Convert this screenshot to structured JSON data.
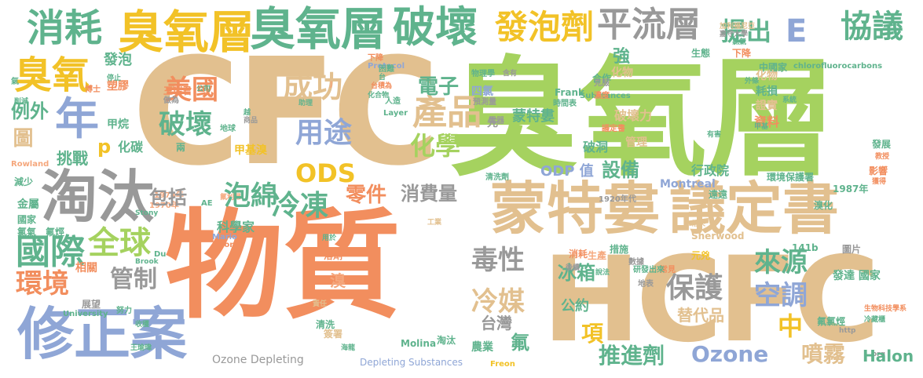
{
  "palette": {
    "tan": "#e2c08f",
    "green": "#a5d25f",
    "orange": "#f28e5e",
    "teal": "#5fb38d",
    "gray": "#999999",
    "blue": "#8fa6d6",
    "yellow": "#f2c227",
    "salmon": "#f5a77c"
  },
  "words": [
    {
      "text": "CFC",
      "color": "tan"
    },
    {
      "text": "臭氧層",
      "color": "green"
    },
    {
      "text": "物質",
      "color": "orange"
    },
    {
      "text": "HCFC",
      "color": "tan"
    },
    {
      "text": "蒙特婁",
      "color": "tan"
    },
    {
      "text": "議定書",
      "color": "tan"
    },
    {
      "text": "淘汰",
      "color": "gray"
    },
    {
      "text": "修正案",
      "color": "blue"
    },
    {
      "text": "消耗",
      "color": "teal"
    },
    {
      "text": "臭氧層",
      "color": "yellow"
    },
    {
      "text": "臭氧層",
      "color": "teal"
    },
    {
      "text": "破壞",
      "color": "teal"
    },
    {
      "text": "發泡劑",
      "color": "yellow"
    },
    {
      "text": "平流層",
      "color": "gray"
    },
    {
      "text": "提出",
      "color": "teal"
    },
    {
      "text": "E",
      "color": "blue"
    },
    {
      "text": "協議",
      "color": "teal"
    },
    {
      "text": "臭氧",
      "color": "yellow"
    },
    {
      "text": "年",
      "color": "blue"
    },
    {
      "text": "成功",
      "color": "tan"
    },
    {
      "text": "產品",
      "color": "tan"
    },
    {
      "text": "電子",
      "color": "teal"
    },
    {
      "text": "化學",
      "color": "green"
    },
    {
      "text": "美國",
      "color": "orange"
    },
    {
      "text": "破壞",
      "color": "teal"
    },
    {
      "text": "用途",
      "color": "blue"
    },
    {
      "text": "ODS",
      "color": "yellow"
    },
    {
      "text": "設備",
      "color": "teal"
    },
    {
      "text": "國際",
      "color": "teal"
    },
    {
      "text": "全球",
      "color": "green"
    },
    {
      "text": "環境",
      "color": "orange"
    },
    {
      "text": "冷凍",
      "color": "teal"
    },
    {
      "text": "泡綿",
      "color": "teal"
    },
    {
      "text": "零件",
      "color": "orange"
    },
    {
      "text": "消費量",
      "color": "gray"
    },
    {
      "text": "毒性",
      "color": "gray"
    },
    {
      "text": "冷媒",
      "color": "tan"
    },
    {
      "text": "冰箱",
      "color": "teal"
    },
    {
      "text": "管制",
      "color": "gray"
    },
    {
      "text": "保護",
      "color": "gray"
    },
    {
      "text": "來源",
      "color": "teal"
    },
    {
      "text": "空調",
      "color": "blue"
    },
    {
      "text": "替代品",
      "color": "tan"
    },
    {
      "text": "Ozone",
      "color": "blue"
    },
    {
      "text": "Halon",
      "color": "teal"
    },
    {
      "text": "推進劑",
      "color": "teal"
    },
    {
      "text": "噴霧",
      "color": "tan"
    },
    {
      "text": "中",
      "color": "yellow"
    },
    {
      "text": "項",
      "color": "yellow"
    },
    {
      "text": "包括",
      "color": "gray"
    },
    {
      "text": "例外",
      "color": "teal"
    },
    {
      "text": "挑戰",
      "color": "teal"
    },
    {
      "text": "p",
      "color": "yellow"
    },
    {
      "text": "溴",
      "color": "salmon"
    },
    {
      "text": "台灣",
      "color": "gray"
    },
    {
      "text": "氟",
      "color": "teal"
    },
    {
      "text": "公約",
      "color": "teal"
    },
    {
      "text": "發展",
      "color": "teal"
    },
    {
      "text": "Ozone Depleting",
      "color": "gray"
    },
    {
      "text": "Depleting Substances",
      "color": "blue"
    },
    {
      "text": "圖",
      "color": "tan"
    },
    {
      "text": "強",
      "color": "teal"
    },
    {
      "text": "發泡",
      "color": "teal"
    },
    {
      "text": "塑膠",
      "color": "orange"
    },
    {
      "text": "甲烷",
      "color": "teal"
    },
    {
      "text": "Protocol",
      "color": "blue"
    },
    {
      "text": "蒙特婁",
      "color": "teal"
    },
    {
      "text": "化物",
      "color": "tan"
    },
    {
      "text": "耗損",
      "color": "teal"
    },
    {
      "text": "證實",
      "color": "tan"
    },
    {
      "text": "資料",
      "color": "orange"
    },
    {
      "text": "四氯",
      "color": "blue"
    },
    {
      "text": "行政院",
      "color": "teal"
    },
    {
      "text": "環境保護署",
      "color": "teal"
    },
    {
      "text": "1987年",
      "color": "teal"
    },
    {
      "text": "影響",
      "color": "orange"
    },
    {
      "text": "金屬",
      "color": "teal"
    },
    {
      "text": "國家",
      "color": "teal"
    },
    {
      "text": "氯氣",
      "color": "teal"
    },
    {
      "text": "氟烴",
      "color": "teal"
    },
    {
      "text": "ODP 值",
      "color": "blue"
    },
    {
      "text": "Montreal",
      "color": "blue"
    },
    {
      "text": "發達 國家",
      "color": "teal"
    },
    {
      "text": "141b",
      "color": "teal"
    },
    {
      "text": "圖片",
      "color": "gray"
    },
    {
      "text": "遠遠",
      "color": "teal"
    },
    {
      "text": "溴化",
      "color": "teal"
    },
    {
      "text": "相關",
      "color": "orange"
    },
    {
      "text": "常見",
      "color": "orange"
    },
    {
      "text": "消耗",
      "color": "orange"
    },
    {
      "text": "生產",
      "color": "salmon"
    },
    {
      "text": "措施",
      "color": "teal"
    },
    {
      "text": "管理",
      "color": "tan"
    },
    {
      "text": "破壞力",
      "color": "tan"
    },
    {
      "text": "破洞",
      "color": "teal"
    },
    {
      "text": "chlorofluorocarbons",
      "color": "teal"
    },
    {
      "text": "展望",
      "color": "gray"
    },
    {
      "text": "氟氯烴",
      "color": "teal"
    },
    {
      "text": "清洗",
      "color": "teal"
    },
    {
      "text": "農業",
      "color": "teal"
    },
    {
      "text": "淘汰",
      "color": "teal"
    },
    {
      "text": "元兇",
      "color": "yellow"
    },
    {
      "text": "Sherwood",
      "color": "tan"
    },
    {
      "text": "Frank",
      "color": "teal"
    },
    {
      "text": "Substances",
      "color": "teal"
    },
    {
      "text": "Freon",
      "color": "yellow"
    },
    {
      "text": "1920年代",
      "color": "gray"
    },
    {
      "text": "時間表",
      "color": "teal"
    },
    {
      "text": "合作",
      "color": "teal"
    },
    {
      "text": "生態",
      "color": "teal"
    },
    {
      "text": "下降",
      "color": "orange"
    },
    {
      "text": "中國家",
      "color": "teal"
    },
    {
      "text": "海龍",
      "color": "teal"
    },
    {
      "text": "王瑞君",
      "color": "orange"
    },
    {
      "text": "做為",
      "color": "gray"
    },
    {
      "text": "甲基溴",
      "color": "yellow"
    },
    {
      "text": "兩",
      "color": "teal"
    },
    {
      "text": "化碳",
      "color": "teal"
    },
    {
      "text": "減少",
      "color": "teal"
    },
    {
      "text": "Rowland",
      "color": "salmon"
    },
    {
      "text": "削減",
      "color": "teal"
    },
    {
      "text": "1974年",
      "color": "salmon"
    },
    {
      "text": "1970年",
      "color": "salmon"
    },
    {
      "text": "科學家",
      "color": "teal"
    },
    {
      "text": "冷藏櫃",
      "color": "teal"
    },
    {
      "text": "http",
      "color": "gray"
    },
    {
      "text": "org",
      "color": "gray"
    },
    {
      "text": "溶劑",
      "color": "orange"
    },
    {
      "text": "簽署",
      "color": "tan"
    },
    {
      "text": "Molina",
      "color": "teal"
    },
    {
      "text": "Layer",
      "color": "teal"
    },
    {
      "text": "University",
      "color": "teal"
    },
    {
      "text": "Stony",
      "color": "teal"
    },
    {
      "text": "Brook",
      "color": "teal"
    },
    {
      "text": "Du",
      "color": "teal"
    },
    {
      "text": "Pont",
      "color": "orange"
    },
    {
      "text": "Mario",
      "color": "blue"
    },
    {
      "text": "AE",
      "color": "teal"
    },
    {
      "text": "用於",
      "color": "teal"
    },
    {
      "text": "外條",
      "color": "teal"
    },
    {
      "text": "有害",
      "color": "teal"
    },
    {
      "text": "濃度",
      "color": "orange"
    },
    {
      "text": "議定書",
      "color": "orange"
    },
    {
      "text": "電器",
      "color": "gray"
    },
    {
      "text": "清洗劑",
      "color": "teal"
    },
    {
      "text": "地球",
      "color": "teal"
    },
    {
      "text": "數據",
      "color": "gray"
    },
    {
      "text": "研發出來",
      "color": "teal"
    },
    {
      "text": "物理學",
      "color": "teal"
    },
    {
      "text": "人造",
      "color": "teal"
    },
    {
      "text": "說法",
      "color": "teal"
    },
    {
      "text": "地表",
      "color": "gray"
    },
    {
      "text": "後續",
      "color": "gray"
    },
    {
      "text": "帶來",
      "color": "tan"
    },
    {
      "text": "努力",
      "color": "teal"
    },
    {
      "text": "嘉守大學",
      "color": "gray"
    },
    {
      "text": "氯氣",
      "color": "teal"
    },
    {
      "text": "甲基",
      "color": "teal"
    },
    {
      "text": "克服",
      "color": "gray"
    },
    {
      "text": "系統",
      "color": "teal"
    },
    {
      "text": "教授",
      "color": "orange"
    },
    {
      "text": "加利福尼亞",
      "color": "tan"
    },
    {
      "text": "獲得",
      "color": "orange"
    },
    {
      "text": "工業",
      "color": "tan"
    },
    {
      "text": "生物科技學系",
      "color": "orange"
    },
    {
      "text": "責任",
      "color": "tan"
    },
    {
      "text": "困難",
      "color": "teal"
    },
    {
      "text": "預測量",
      "color": "gray"
    },
    {
      "text": "公司",
      "color": "teal"
    },
    {
      "text": "越",
      "color": "teal"
    },
    {
      "text": "商品",
      "color": "gray"
    },
    {
      "text": "助理",
      "color": "teal"
    },
    {
      "text": "化合物",
      "color": "teal"
    },
    {
      "text": "台",
      "color": "teal"
    },
    {
      "text": "J",
      "color": "salmon"
    },
    {
      "text": "台積為",
      "color": "orange"
    },
    {
      "text": "先",
      "color": "gray"
    },
    {
      "text": "含有",
      "color": "gray"
    },
    {
      "text": "停止",
      "color": "teal"
    },
    {
      "text": "博士",
      "color": "orange"
    },
    {
      "text": "氣",
      "color": "teal"
    },
    {
      "text": "氟利昂",
      "color": "salmon"
    },
    {
      "text": "收穫",
      "color": "teal"
    },
    {
      "text": "王瑜瑋",
      "color": "teal"
    }
  ]
}
